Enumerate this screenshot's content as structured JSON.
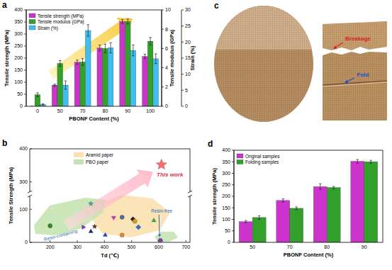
{
  "chart_data": [
    {
      "panel": "a",
      "type": "bar",
      "categories": [
        "0",
        "50",
        "70",
        "80",
        "90",
        "100"
      ],
      "x_label": "PBONF Content (%)",
      "y_label": "Tensile strength (MPa)",
      "y2_label": "Tensile modulus (GPa)",
      "y3_label": "Strain (%)",
      "ylim": [
        0,
        400
      ],
      "yticks": [
        0,
        50,
        100,
        150,
        200,
        250,
        300,
        350,
        400
      ],
      "y2lim": [
        0,
        10
      ],
      "y2ticks": [
        0,
        2,
        4,
        6,
        8,
        10
      ],
      "y3lim": [
        0,
        30
      ],
      "y3ticks": [
        0,
        5,
        10,
        15,
        20,
        25,
        30
      ],
      "legend": "upper left",
      "series": [
        {
          "name": "Tensile strength (MPa)",
          "color": "#cc33cc",
          "values": [
            0,
            88,
            183,
            242,
            352,
            207
          ],
          "errors": [
            0,
            4,
            9,
            12,
            8,
            9
          ]
        },
        {
          "name": "Tensile modulus (GPa)",
          "color": "#33a02c",
          "axis": "y2",
          "values": [
            1.2,
            4.45,
            4.6,
            6.0,
            8.8,
            6.75
          ],
          "errors": [
            0.2,
            0.3,
            0.35,
            0.45,
            0.25,
            0.4
          ]
        },
        {
          "name": "Strain (%)",
          "color": "#3fbfef",
          "axis": "y3",
          "values": [
            0.6,
            6.6,
            23.6,
            18.2,
            17.4,
            14.8
          ],
          "errors": [
            0.2,
            1.3,
            1.8,
            1.6,
            1.7,
            1.5
          ]
        }
      ]
    },
    {
      "panel": "b",
      "type": "scatter",
      "x_label": "Td (℃)",
      "y_label": "Tensile Strength (MPa)",
      "xlim": [
        125,
        715
      ],
      "xticks": [
        200,
        300,
        400,
        500,
        600,
        700
      ],
      "ylim": [
        0,
        400
      ],
      "yticks": [
        0,
        100,
        300,
        400
      ],
      "axis_break": [
        140,
        270
      ],
      "regions": [
        {
          "name": "Aramid paper",
          "color": "#fbe0b0"
        },
        {
          "name": "PBO paper",
          "color": "#c5e3b0"
        }
      ],
      "annotations": [
        "This work",
        "Resin-free",
        "Resin-containing"
      ],
      "series": [
        {
          "marker": "circle",
          "color": "#2e8b2e",
          "x": [
            200
          ],
          "values": [
            50
          ]
        },
        {
          "marker": "star",
          "color": "#3fb5b5",
          "x": [
            350
          ],
          "values": [
            117
          ]
        },
        {
          "marker": "triangle-right",
          "color": "#8a2be2",
          "x": [
            322
          ],
          "values": [
            46
          ]
        },
        {
          "marker": "star",
          "color": "#8b1a1a",
          "x": [
            364
          ],
          "values": [
            48
          ]
        },
        {
          "marker": "triangle",
          "color": "#1a237e",
          "x": [
            350
          ],
          "values": [
            33
          ]
        },
        {
          "marker": "triangle",
          "color": "#2040d0",
          "x": [
            403
          ],
          "values": [
            22
          ]
        },
        {
          "marker": "triangle-down",
          "color": "#d030d0",
          "x": [
            434
          ],
          "values": [
            75
          ]
        },
        {
          "marker": "circle",
          "color": "#4a6fa5",
          "x": [
            465
          ],
          "values": [
            76
          ]
        },
        {
          "marker": "circle",
          "color": "#e08a30",
          "x": [
            465
          ],
          "values": [
            22
          ]
        },
        {
          "marker": "diamond",
          "color": "#222222",
          "x": [
            505
          ],
          "values": [
            70
          ]
        },
        {
          "marker": "pentagon",
          "color": "#d4a017",
          "x": [
            512
          ],
          "values": [
            64
          ]
        },
        {
          "marker": "diamond",
          "color": "#3070c0",
          "x": [
            525
          ],
          "values": [
            46
          ]
        },
        {
          "marker": "triangle",
          "color": "#3cb043",
          "x": [
            582
          ],
          "values": [
            66
          ]
        },
        {
          "marker": "hexagon",
          "color": "#7b3f9e",
          "x": [
            606
          ],
          "values": [
            5
          ]
        },
        {
          "marker": "star",
          "color": "#ff6b6b",
          "x": [
            610
          ],
          "values": [
            352
          ]
        }
      ]
    },
    {
      "panel": "d",
      "type": "bar",
      "categories": [
        "50",
        "70",
        "80",
        "90"
      ],
      "x_label": "PBONF Content (%)",
      "y_label": "Tensile strength (MPa)",
      "ylim": [
        0,
        400
      ],
      "yticks": [
        0,
        50,
        100,
        150,
        200,
        250,
        300,
        350,
        400
      ],
      "legend": "upper left",
      "series": [
        {
          "name": "Original samples",
          "color": "#cc33cc",
          "values": [
            90,
            182,
            242,
            352
          ],
          "errors": [
            5,
            7,
            12,
            8
          ]
        },
        {
          "name": "Folding samples",
          "color": "#33a02c",
          "values": [
            108,
            148,
            238,
            350
          ],
          "errors": [
            8,
            6,
            5,
            6
          ]
        }
      ]
    }
  ],
  "photo": {
    "panel": "c",
    "annotations": [
      "Breakage",
      "Fold"
    ]
  }
}
